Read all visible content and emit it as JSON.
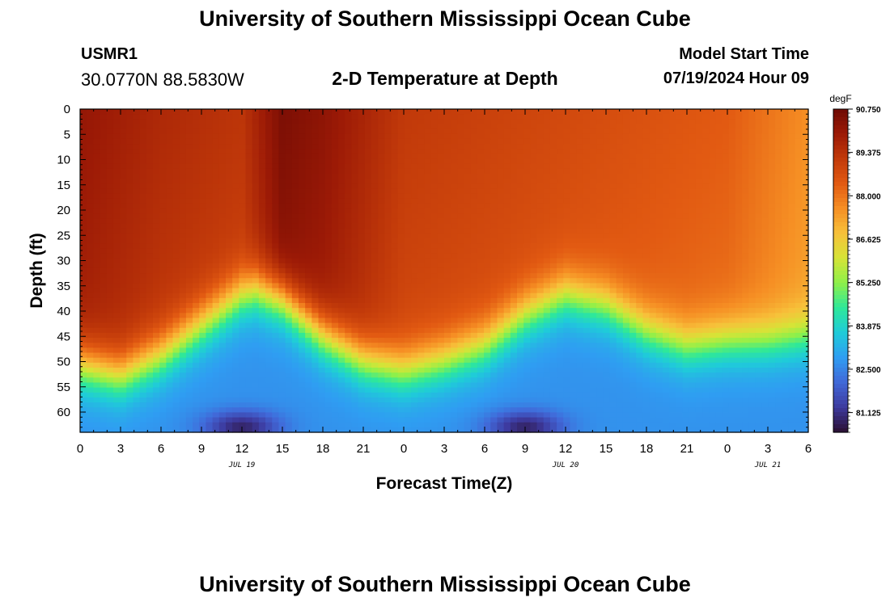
{
  "header": {
    "title": "University of Southern Mississippi Ocean Cube",
    "station_id": "USMR1",
    "coordinates": "30.0770N  88.5830W",
    "subtitle": "2-D Temperature at Depth",
    "model_start_label": "Model Start Time",
    "model_start_value": "07/19/2024 Hour 09"
  },
  "footer": {
    "title": "University of Southern Mississippi Ocean Cube"
  },
  "chart_data": {
    "type": "heatmap",
    "title": "2-D Temperature at Depth",
    "xlabel": "Forecast Time(Z)",
    "ylabel": "Depth (ft)",
    "xlim": [
      0,
      54
    ],
    "ylim": [
      0,
      64
    ],
    "x_ticks": [
      {
        "pos": 0,
        "label": "0"
      },
      {
        "pos": 3,
        "label": "3"
      },
      {
        "pos": 6,
        "label": "6"
      },
      {
        "pos": 9,
        "label": "9"
      },
      {
        "pos": 12,
        "label": "12"
      },
      {
        "pos": 15,
        "label": "15"
      },
      {
        "pos": 18,
        "label": "18"
      },
      {
        "pos": 21,
        "label": "21"
      },
      {
        "pos": 24,
        "label": "0"
      },
      {
        "pos": 27,
        "label": "3"
      },
      {
        "pos": 30,
        "label": "6"
      },
      {
        "pos": 33,
        "label": "9"
      },
      {
        "pos": 36,
        "label": "12"
      },
      {
        "pos": 39,
        "label": "15"
      },
      {
        "pos": 42,
        "label": "18"
      },
      {
        "pos": 45,
        "label": "21"
      },
      {
        "pos": 48,
        "label": "0"
      },
      {
        "pos": 51,
        "label": "3"
      },
      {
        "pos": 54,
        "label": "6"
      }
    ],
    "date_labels": [
      {
        "pos": 12,
        "label": "JUL 19"
      },
      {
        "pos": 36,
        "label": "JUL 20"
      },
      {
        "pos": 51,
        "label": "JUL 21"
      }
    ],
    "y_ticks": [
      0,
      5,
      10,
      15,
      20,
      25,
      30,
      35,
      40,
      45,
      50,
      55,
      60
    ],
    "colorbar": {
      "unit": "degF",
      "min": 80.5,
      "max": 90.75,
      "labels": [
        "90.750",
        "89.375",
        "88.000",
        "86.625",
        "85.250",
        "83.875",
        "82.500",
        "81.125"
      ],
      "colors": [
        "#2a0f30",
        "#3d3a9e",
        "#4168d8",
        "#2f9df2",
        "#1fcbd9",
        "#2ee89a",
        "#8ef04a",
        "#d6e437",
        "#f7c13a",
        "#f68f24",
        "#e25a12",
        "#c23a0a",
        "#9c1a06",
        "#6e0a04"
      ]
    },
    "thermocline_depth_ft": [
      {
        "x": 0,
        "depth": 51
      },
      {
        "x": 3,
        "depth": 53
      },
      {
        "x": 6,
        "depth": 49
      },
      {
        "x": 9,
        "depth": 43
      },
      {
        "x": 12,
        "depth": 37
      },
      {
        "x": 13,
        "depth": 36
      },
      {
        "x": 15,
        "depth": 38
      },
      {
        "x": 18,
        "depth": 45
      },
      {
        "x": 21,
        "depth": 50
      },
      {
        "x": 24,
        "depth": 52
      },
      {
        "x": 27,
        "depth": 50
      },
      {
        "x": 30,
        "depth": 47
      },
      {
        "x": 33,
        "depth": 41
      },
      {
        "x": 36,
        "depth": 37
      },
      {
        "x": 39,
        "depth": 39
      },
      {
        "x": 42,
        "depth": 44
      },
      {
        "x": 45,
        "depth": 47
      },
      {
        "x": 48,
        "depth": 46
      },
      {
        "x": 51,
        "depth": 46
      },
      {
        "x": 54,
        "depth": 45
      }
    ],
    "surface_temperature_degF": [
      {
        "x": 0,
        "value": 90.1
      },
      {
        "x": 6,
        "value": 89.6
      },
      {
        "x": 12,
        "value": 89.3
      },
      {
        "x": 15,
        "value": 90.5
      },
      {
        "x": 18,
        "value": 90.2
      },
      {
        "x": 24,
        "value": 89.2
      },
      {
        "x": 36,
        "value": 88.8
      },
      {
        "x": 48,
        "value": 88.4
      },
      {
        "x": 54,
        "value": 87.6
      }
    ],
    "bottom_cold_cores": [
      {
        "x": 12,
        "depth": 63,
        "value": 80.9
      },
      {
        "x": 33,
        "depth": 63,
        "value": 80.9
      }
    ]
  }
}
